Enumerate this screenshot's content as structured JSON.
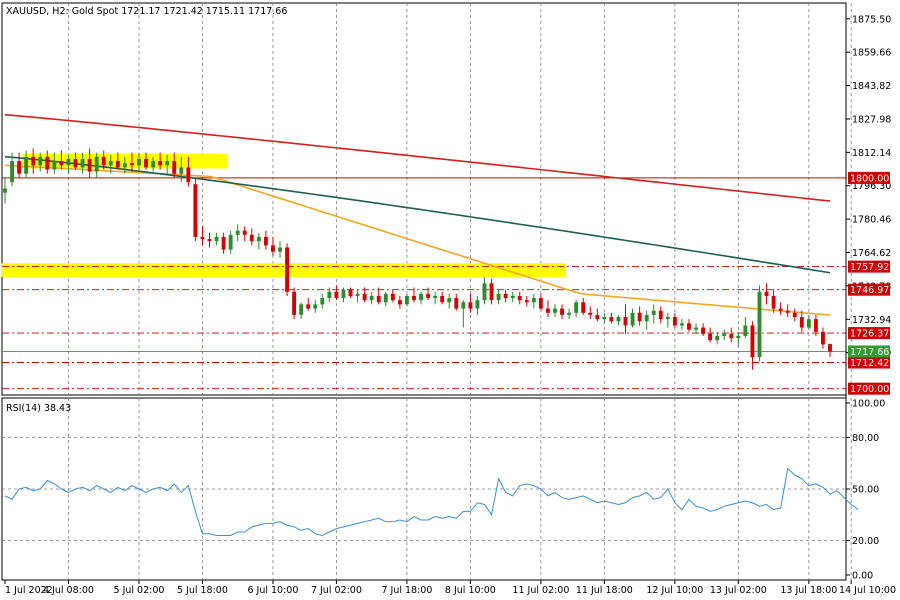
{
  "instrument": {
    "symbol_line": "XAUUSD, H2:  Gold Spot  1721.17 1721.42 1715.11 1717.66"
  },
  "indicator": {
    "label": "RSI(14) 38.43"
  },
  "colors": {
    "background": "#ffffff",
    "bull_candle": "#2e8b2e",
    "bear_candle": "#d40000",
    "doji_marker": "#ff00ff",
    "ma_fast": "#f5a623",
    "ma_mid": "#1f5f4f",
    "ma_slow": "#d62020",
    "rsi_line": "#3b8fd6",
    "highlight_zone": "#ffff00",
    "current_price_line": "#2ca02c",
    "level_line": "#cc0000",
    "grid": "#7f7f7f"
  },
  "chart_data": [
    {
      "type": "candlestick",
      "title": "XAUUSD, H2:  Gold Spot",
      "ylim": [
        1697.0,
        1883.0
      ],
      "y_ticks": [
        "1875.50",
        "1859.66",
        "1843.82",
        "1827.98",
        "1812.14",
        "1796.30",
        "1780.46",
        "1764.62",
        "1748.78",
        "1732.94",
        "1717.10"
      ],
      "x_ticks": [
        "1 Jul 2022",
        "4 Jul 08:00",
        "5 Jul 02:00",
        "5 Jul 18:00",
        "6 Jul 10:00",
        "7 Jul 02:00",
        "7 Jul 18:00",
        "8 Jul 10:00",
        "11 Jul 02:00",
        "11 Jul 18:00",
        "12 Jul 10:00",
        "13 Jul 02:00",
        "13 Jul 18:00",
        "14 Jul 10:00"
      ],
      "price_levels": [
        {
          "value": 1800.0,
          "label": "1800.00",
          "style": "solid"
        },
        {
          "value": 1757.92,
          "label": "1757.92",
          "style": "dashdot"
        },
        {
          "value": 1746.97,
          "label": "1746.97",
          "style": "dashdot"
        },
        {
          "value": 1726.37,
          "label": "1726.37",
          "style": "dashdot"
        },
        {
          "value": 1712.42,
          "label": "1712.42",
          "style": "dashdot"
        },
        {
          "value": 1700.0,
          "label": "1700.00",
          "style": "dashdot"
        }
      ],
      "current_price": {
        "value": 1717.66,
        "label": "1717.66"
      },
      "zones": [
        {
          "from": 1804.5,
          "to": 1811.5,
          "start": 3,
          "end": 31
        },
        {
          "from": 1753.0,
          "to": 1759.5,
          "start": 0,
          "end": 79
        }
      ],
      "candles": [
        {
          "o": 1793,
          "h": 1800,
          "l": 1788,
          "c": 1795
        },
        {
          "o": 1798,
          "h": 1812,
          "l": 1796,
          "c": 1808
        },
        {
          "o": 1808,
          "h": 1812,
          "l": 1800,
          "c": 1802
        },
        {
          "o": 1802,
          "h": 1813,
          "l": 1800,
          "c": 1810
        },
        {
          "o": 1810,
          "h": 1814,
          "l": 1802,
          "c": 1806
        },
        {
          "o": 1806,
          "h": 1812,
          "l": 1803,
          "c": 1810
        },
        {
          "o": 1810,
          "h": 1813,
          "l": 1802,
          "c": 1804
        },
        {
          "o": 1804,
          "h": 1812,
          "l": 1802,
          "c": 1808
        },
        {
          "o": 1808,
          "h": 1813,
          "l": 1804,
          "c": 1806
        },
        {
          "o": 1806,
          "h": 1811,
          "l": 1802,
          "c": 1809
        },
        {
          "o": 1809,
          "h": 1812,
          "l": 1804,
          "c": 1805
        },
        {
          "o": 1805,
          "h": 1812,
          "l": 1802,
          "c": 1809
        },
        {
          "o": 1809,
          "h": 1814,
          "l": 1800,
          "c": 1803
        },
        {
          "o": 1803,
          "h": 1812,
          "l": 1800,
          "c": 1810
        },
        {
          "o": 1810,
          "h": 1813,
          "l": 1804,
          "c": 1806
        },
        {
          "o": 1806,
          "h": 1811,
          "l": 1802,
          "c": 1808
        },
        {
          "o": 1808,
          "h": 1812,
          "l": 1804,
          "c": 1805
        },
        {
          "o": 1805,
          "h": 1810,
          "l": 1802,
          "c": 1807
        },
        {
          "o": 1807,
          "h": 1812,
          "l": 1803,
          "c": 1806
        },
        {
          "o": 1806,
          "h": 1812,
          "l": 1803,
          "c": 1809
        },
        {
          "o": 1809,
          "h": 1812,
          "l": 1804,
          "c": 1805
        },
        {
          "o": 1805,
          "h": 1810,
          "l": 1803,
          "c": 1808
        },
        {
          "o": 1808,
          "h": 1812,
          "l": 1804,
          "c": 1806
        },
        {
          "o": 1806,
          "h": 1811,
          "l": 1802,
          "c": 1808
        },
        {
          "o": 1808,
          "h": 1812,
          "l": 1800,
          "c": 1802
        },
        {
          "o": 1802,
          "h": 1810,
          "l": 1798,
          "c": 1805
        },
        {
          "o": 1805,
          "h": 1810,
          "l": 1796,
          "c": 1798
        },
        {
          "o": 1797,
          "h": 1800,
          "l": 1770,
          "c": 1772
        },
        {
          "o": 1772,
          "h": 1777,
          "l": 1768,
          "c": 1771
        },
        {
          "o": 1771,
          "h": 1774,
          "l": 1767,
          "c": 1770
        },
        {
          "o": 1770,
          "h": 1774,
          "l": 1768,
          "c": 1772
        },
        {
          "o": 1772,
          "h": 1774,
          "l": 1764,
          "c": 1766
        },
        {
          "o": 1766,
          "h": 1775,
          "l": 1764,
          "c": 1773
        },
        {
          "o": 1773,
          "h": 1778,
          "l": 1770,
          "c": 1775
        },
        {
          "o": 1775,
          "h": 1777,
          "l": 1770,
          "c": 1773
        },
        {
          "o": 1773,
          "h": 1776,
          "l": 1768,
          "c": 1770
        },
        {
          "o": 1770,
          "h": 1774,
          "l": 1766,
          "c": 1772
        },
        {
          "o": 1772,
          "h": 1775,
          "l": 1766,
          "c": 1768
        },
        {
          "o": 1768,
          "h": 1772,
          "l": 1763,
          "c": 1765
        },
        {
          "o": 1765,
          "h": 1770,
          "l": 1762,
          "c": 1767
        },
        {
          "o": 1767,
          "h": 1769,
          "l": 1744,
          "c": 1746
        },
        {
          "o": 1746,
          "h": 1748,
          "l": 1733,
          "c": 1735
        },
        {
          "o": 1735,
          "h": 1741,
          "l": 1733,
          "c": 1740
        },
        {
          "o": 1740,
          "h": 1743,
          "l": 1737,
          "c": 1738
        },
        {
          "o": 1738,
          "h": 1742,
          "l": 1736,
          "c": 1740
        },
        {
          "o": 1740,
          "h": 1745,
          "l": 1738,
          "c": 1743
        },
        {
          "o": 1743,
          "h": 1748,
          "l": 1741,
          "c": 1746
        },
        {
          "o": 1746,
          "h": 1749,
          "l": 1742,
          "c": 1743
        },
        {
          "o": 1743,
          "h": 1748,
          "l": 1741,
          "c": 1747
        },
        {
          "o": 1747,
          "h": 1748,
          "l": 1743,
          "c": 1744
        },
        {
          "o": 1744,
          "h": 1747,
          "l": 1741,
          "c": 1745
        },
        {
          "o": 1745,
          "h": 1748,
          "l": 1741,
          "c": 1742
        },
        {
          "o": 1742,
          "h": 1746,
          "l": 1740,
          "c": 1744
        },
        {
          "o": 1744,
          "h": 1748,
          "l": 1740,
          "c": 1741
        },
        {
          "o": 1741,
          "h": 1746,
          "l": 1739,
          "c": 1745
        },
        {
          "o": 1745,
          "h": 1747,
          "l": 1741,
          "c": 1742
        },
        {
          "o": 1742,
          "h": 1744,
          "l": 1738,
          "c": 1740
        },
        {
          "o": 1740,
          "h": 1745,
          "l": 1739,
          "c": 1744
        },
        {
          "o": 1744,
          "h": 1748,
          "l": 1741,
          "c": 1742
        },
        {
          "o": 1742,
          "h": 1746,
          "l": 1740,
          "c": 1745
        },
        {
          "o": 1745,
          "h": 1748,
          "l": 1742,
          "c": 1743
        },
        {
          "o": 1743,
          "h": 1746,
          "l": 1740,
          "c": 1744
        },
        {
          "o": 1744,
          "h": 1746,
          "l": 1740,
          "c": 1741
        },
        {
          "o": 1741,
          "h": 1745,
          "l": 1738,
          "c": 1743
        },
        {
          "o": 1743,
          "h": 1745,
          "l": 1737,
          "c": 1738
        },
        {
          "o": 1738,
          "h": 1742,
          "l": 1729,
          "c": 1741
        },
        {
          "o": 1741,
          "h": 1745,
          "l": 1736,
          "c": 1738
        },
        {
          "o": 1738,
          "h": 1744,
          "l": 1735,
          "c": 1742
        },
        {
          "o": 1742,
          "h": 1753,
          "l": 1740,
          "c": 1750
        },
        {
          "o": 1750,
          "h": 1752,
          "l": 1740,
          "c": 1742
        },
        {
          "o": 1742,
          "h": 1747,
          "l": 1740,
          "c": 1745
        },
        {
          "o": 1745,
          "h": 1747,
          "l": 1741,
          "c": 1743
        },
        {
          "o": 1743,
          "h": 1746,
          "l": 1741,
          "c": 1744
        },
        {
          "o": 1744,
          "h": 1746,
          "l": 1740,
          "c": 1742
        },
        {
          "o": 1742,
          "h": 1744,
          "l": 1739,
          "c": 1741
        },
        {
          "o": 1741,
          "h": 1745,
          "l": 1738,
          "c": 1743
        },
        {
          "o": 1743,
          "h": 1745,
          "l": 1737,
          "c": 1738
        },
        {
          "o": 1738,
          "h": 1742,
          "l": 1734,
          "c": 1736
        },
        {
          "o": 1736,
          "h": 1740,
          "l": 1734,
          "c": 1738
        },
        {
          "o": 1738,
          "h": 1740,
          "l": 1733,
          "c": 1735
        },
        {
          "o": 1735,
          "h": 1738,
          "l": 1733,
          "c": 1736
        },
        {
          "o": 1736,
          "h": 1742,
          "l": 1734,
          "c": 1741
        },
        {
          "o": 1741,
          "h": 1743,
          "l": 1735,
          "c": 1736
        },
        {
          "o": 1736,
          "h": 1739,
          "l": 1733,
          "c": 1735
        },
        {
          "o": 1735,
          "h": 1738,
          "l": 1732,
          "c": 1733
        },
        {
          "o": 1733,
          "h": 1736,
          "l": 1731,
          "c": 1734
        },
        {
          "o": 1734,
          "h": 1736,
          "l": 1731,
          "c": 1732
        },
        {
          "o": 1732,
          "h": 1735,
          "l": 1730,
          "c": 1734
        },
        {
          "o": 1734,
          "h": 1740,
          "l": 1726,
          "c": 1730
        },
        {
          "o": 1730,
          "h": 1738,
          "l": 1729,
          "c": 1736
        },
        {
          "o": 1736,
          "h": 1739,
          "l": 1730,
          "c": 1732
        },
        {
          "o": 1732,
          "h": 1737,
          "l": 1728,
          "c": 1735
        },
        {
          "o": 1735,
          "h": 1740,
          "l": 1731,
          "c": 1737
        },
        {
          "o": 1737,
          "h": 1739,
          "l": 1731,
          "c": 1733
        },
        {
          "o": 1733,
          "h": 1736,
          "l": 1729,
          "c": 1734
        },
        {
          "o": 1734,
          "h": 1736,
          "l": 1729,
          "c": 1730
        },
        {
          "o": 1730,
          "h": 1733,
          "l": 1728,
          "c": 1731
        },
        {
          "o": 1731,
          "h": 1733,
          "l": 1727,
          "c": 1728
        },
        {
          "o": 1728,
          "h": 1731,
          "l": 1726,
          "c": 1729
        },
        {
          "o": 1729,
          "h": 1731,
          "l": 1725,
          "c": 1726
        },
        {
          "o": 1726,
          "h": 1729,
          "l": 1722,
          "c": 1723
        },
        {
          "o": 1723,
          "h": 1727,
          "l": 1721,
          "c": 1725
        },
        {
          "o": 1725,
          "h": 1728,
          "l": 1723,
          "c": 1726
        },
        {
          "o": 1726,
          "h": 1729,
          "l": 1722,
          "c": 1724
        },
        {
          "o": 1724,
          "h": 1727,
          "l": 1720,
          "c": 1725
        },
        {
          "o": 1725,
          "h": 1734,
          "l": 1724,
          "c": 1730
        },
        {
          "o": 1730,
          "h": 1732,
          "l": 1709,
          "c": 1715
        },
        {
          "o": 1715,
          "h": 1749,
          "l": 1713,
          "c": 1746
        },
        {
          "o": 1746,
          "h": 1750,
          "l": 1740,
          "c": 1744
        },
        {
          "o": 1744,
          "h": 1747,
          "l": 1736,
          "c": 1738
        },
        {
          "o": 1738,
          "h": 1741,
          "l": 1735,
          "c": 1737
        },
        {
          "o": 1737,
          "h": 1740,
          "l": 1734,
          "c": 1736
        },
        {
          "o": 1736,
          "h": 1738,
          "l": 1732,
          "c": 1734
        },
        {
          "o": 1734,
          "h": 1737,
          "l": 1727,
          "c": 1729
        },
        {
          "o": 1729,
          "h": 1735,
          "l": 1728,
          "c": 1733
        },
        {
          "o": 1733,
          "h": 1735,
          "l": 1725,
          "c": 1727
        },
        {
          "o": 1727,
          "h": 1729,
          "l": 1719,
          "c": 1721
        },
        {
          "o": 1721.17,
          "h": 1721.42,
          "l": 1715.11,
          "c": 1717.66
        }
      ],
      "moving_averages": [
        {
          "color_key": "ma_fast",
          "from": 1806,
          "to": 1735,
          "shape": "fast"
        },
        {
          "color_key": "ma_mid",
          "from": 1810,
          "to": 1755,
          "shape": "mid"
        },
        {
          "color_key": "ma_slow",
          "from": 1830,
          "to": 1789,
          "shape": "slow"
        }
      ]
    },
    {
      "type": "line",
      "title": "RSI(14) 38.43",
      "ylim": [
        0,
        100
      ],
      "y_ticks": [
        "100.00",
        "80.00",
        "50.00",
        "20.00",
        "0.00"
      ],
      "levels": [
        80,
        50,
        20
      ],
      "series": [
        {
          "values": [
            46,
            44,
            50,
            51,
            49,
            50,
            55,
            53,
            50,
            48,
            50,
            51,
            49,
            52,
            50,
            48,
            51,
            49,
            52,
            50,
            48,
            50,
            51,
            49,
            53,
            48,
            52,
            37,
            24,
            24,
            23,
            23,
            23,
            25,
            25,
            28,
            29,
            30,
            30,
            31,
            29,
            28,
            26,
            27,
            24,
            23,
            25,
            27,
            28,
            29,
            30,
            31,
            32,
            33,
            31,
            31,
            32,
            31,
            34,
            32,
            32,
            34,
            33,
            34,
            33,
            37,
            37,
            42,
            41,
            35,
            56,
            48,
            46,
            52,
            53,
            52,
            50,
            46,
            48,
            45,
            44,
            45,
            46,
            44,
            42,
            43,
            42,
            41,
            42,
            45,
            46,
            48,
            44,
            45,
            50,
            42,
            38,
            44,
            40,
            39,
            37,
            38,
            40,
            41,
            42,
            43,
            42,
            40,
            41,
            38,
            39,
            62,
            58,
            56,
            52,
            53,
            51,
            47,
            49,
            45,
            41,
            38
          ]
        }
      ]
    }
  ]
}
